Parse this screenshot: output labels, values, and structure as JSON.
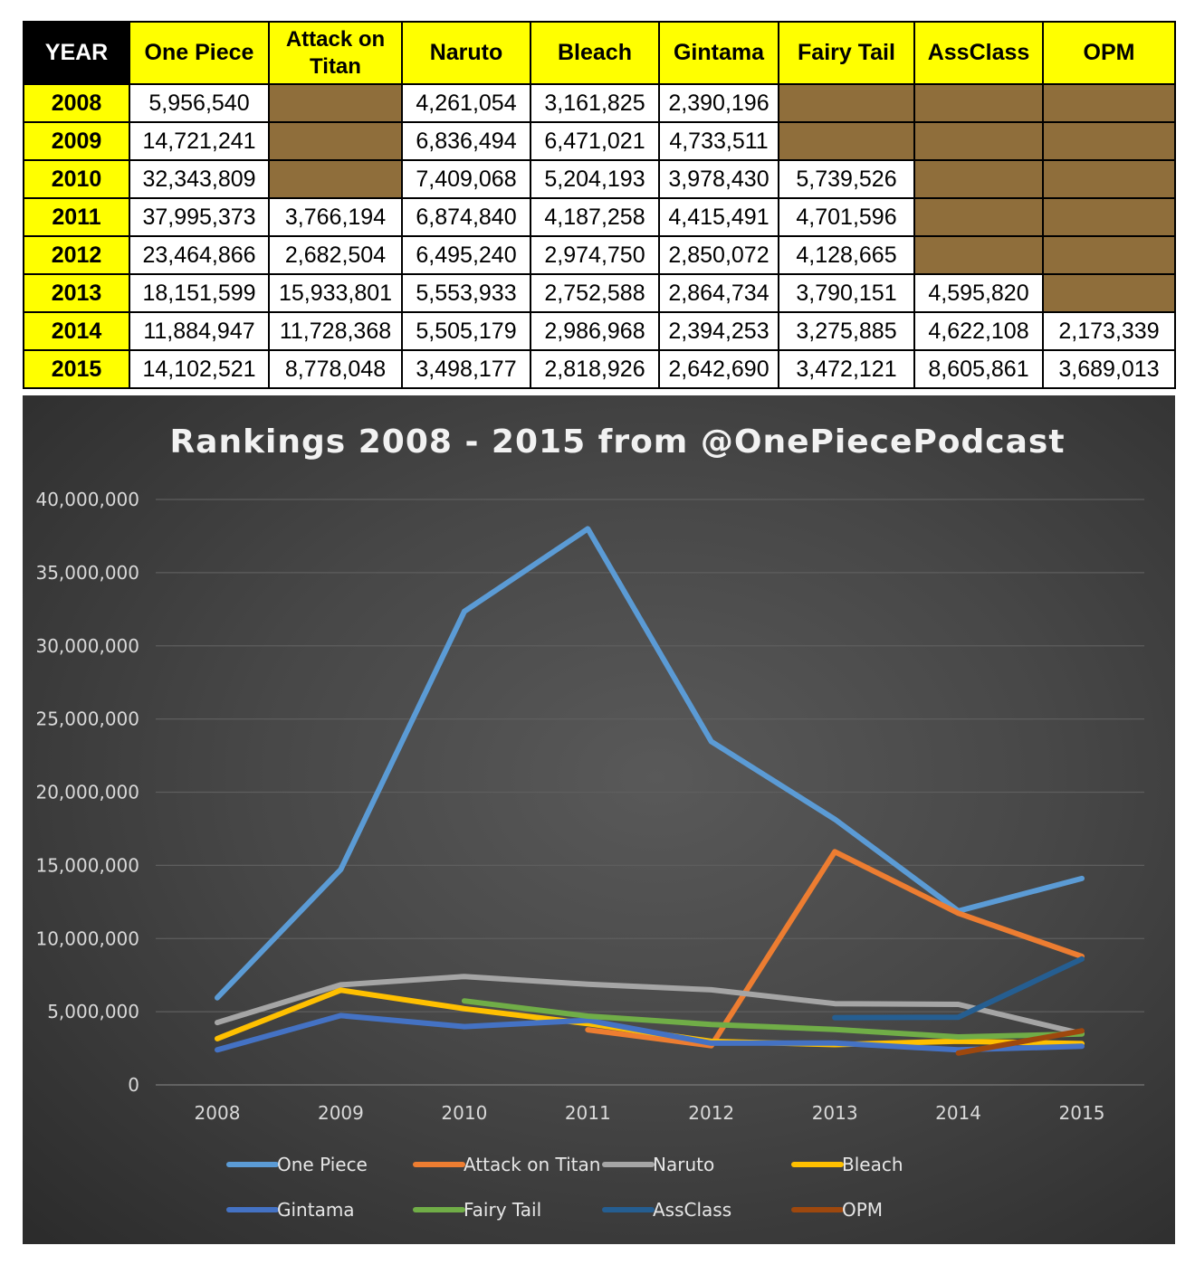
{
  "table": {
    "headers": [
      "YEAR",
      "One Piece",
      "Attack on Titan",
      "Naruto",
      "Bleach",
      "Gintama",
      "Fairy Tail",
      "AssClass",
      "OPM"
    ],
    "rows": [
      {
        "year": "2008",
        "values": [
          "5,956,540",
          "",
          "4,261,054",
          "3,161,825",
          "2,390,196",
          "",
          "",
          ""
        ]
      },
      {
        "year": "2009",
        "values": [
          "14,721,241",
          "",
          "6,836,494",
          "6,471,021",
          "4,733,511",
          "",
          "",
          ""
        ]
      },
      {
        "year": "2010",
        "values": [
          "32,343,809",
          "",
          "7,409,068",
          "5,204,193",
          "3,978,430",
          "5,739,526",
          "",
          ""
        ]
      },
      {
        "year": "2011",
        "values": [
          "37,995,373",
          "3,766,194",
          "6,874,840",
          "4,187,258",
          "4,415,491",
          "4,701,596",
          "",
          ""
        ]
      },
      {
        "year": "2012",
        "values": [
          "23,464,866",
          "2,682,504",
          "6,495,240",
          "2,974,750",
          "2,850,072",
          "4,128,665",
          "",
          ""
        ]
      },
      {
        "year": "2013",
        "values": [
          "18,151,599",
          "15,933,801",
          "5,553,933",
          "2,752,588",
          "2,864,734",
          "3,790,151",
          "4,595,820",
          ""
        ]
      },
      {
        "year": "2014",
        "values": [
          "11,884,947",
          "11,728,368",
          "5,505,179",
          "2,986,968",
          "2,394,253",
          "3,275,885",
          "4,622,108",
          "2,173,339"
        ]
      },
      {
        "year": "2015",
        "values": [
          "14,102,521",
          "8,778,048",
          "3,498,177",
          "2,818,926",
          "2,642,690",
          "3,472,121",
          "8,605,861",
          "3,689,013"
        ]
      }
    ]
  },
  "colors": {
    "header_bg": "#ffff00",
    "year_header_bg": "#000000",
    "empty_cell": "#8f6e3b"
  },
  "chart_data": {
    "type": "line",
    "title": "Rankings 2008 - 2015 from @OnePiecePodcast",
    "categories": [
      "2008",
      "2009",
      "2010",
      "2011",
      "2012",
      "2013",
      "2014",
      "2015"
    ],
    "ylim": [
      0,
      40000000
    ],
    "yticks": [
      0,
      5000000,
      10000000,
      15000000,
      20000000,
      25000000,
      30000000,
      35000000,
      40000000
    ],
    "ytick_labels": [
      "0",
      "5,000,000",
      "10,000,000",
      "15,000,000",
      "20,000,000",
      "25,000,000",
      "30,000,000",
      "35,000,000",
      "40,000,000"
    ],
    "xlabel": "",
    "ylabel": "",
    "grid": true,
    "legend_position": "bottom",
    "series": [
      {
        "name": "One Piece",
        "color": "#5b9bd5",
        "values": [
          5956540,
          14721241,
          32343809,
          37995373,
          23464866,
          18151599,
          11884947,
          14102521
        ]
      },
      {
        "name": "Attack on Titan",
        "color": "#ed7d31",
        "values": [
          null,
          null,
          null,
          3766194,
          2682504,
          15933801,
          11728368,
          8778048
        ]
      },
      {
        "name": "Naruto",
        "color": "#a5a5a5",
        "values": [
          4261054,
          6836494,
          7409068,
          6874840,
          6495240,
          5553933,
          5505179,
          3498177
        ]
      },
      {
        "name": "Bleach",
        "color": "#ffc000",
        "values": [
          3161825,
          6471021,
          5204193,
          4187258,
          2974750,
          2752588,
          2986968,
          2818926
        ]
      },
      {
        "name": "Gintama",
        "color": "#4472c4",
        "values": [
          2390196,
          4733511,
          3978430,
          4415491,
          2850072,
          2864734,
          2394253,
          2642690
        ]
      },
      {
        "name": "Fairy Tail",
        "color": "#70ad47",
        "values": [
          null,
          null,
          5739526,
          4701596,
          4128665,
          3790151,
          3275885,
          3472121
        ]
      },
      {
        "name": "AssClass",
        "color": "#255e91",
        "values": [
          null,
          null,
          null,
          null,
          null,
          4595820,
          4622108,
          8605861
        ]
      },
      {
        "name": "OPM",
        "color": "#9e480e",
        "values": [
          null,
          null,
          null,
          null,
          null,
          null,
          2173339,
          3689013
        ]
      }
    ]
  }
}
